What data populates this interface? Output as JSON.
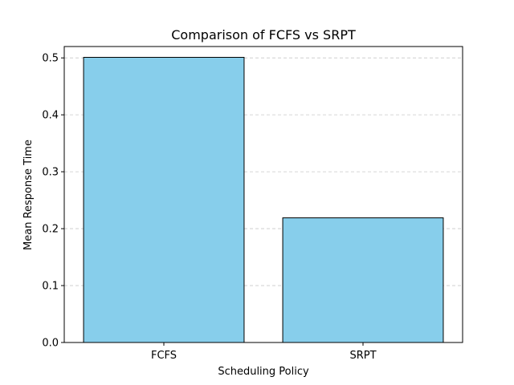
{
  "chart_data": {
    "type": "bar",
    "title": "Comparison of FCFS vs SRPT",
    "xlabel": "Scheduling Policy",
    "ylabel": "Mean Response Time",
    "categories": [
      "FCFS",
      "SRPT"
    ],
    "values": [
      0.501,
      0.219
    ],
    "ylim": [
      0,
      0.52
    ],
    "yticks": [
      "0.0",
      "0.1",
      "0.2",
      "0.3",
      "0.4",
      "0.5"
    ],
    "grid": "y-dashed",
    "colors": {
      "bar_fill": "#87ceeb",
      "bar_edge": "#000000",
      "grid": "#c8c8c8"
    }
  }
}
